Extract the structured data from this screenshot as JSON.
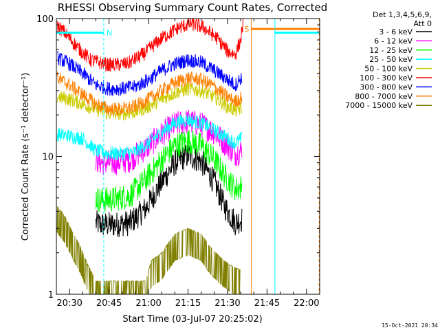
{
  "chart_data": {
    "type": "line",
    "title": "RHESSI Observing Summary Count Rates, Corrected",
    "xlabel": "Start Time (03-Jul-07 20:25:02)",
    "ylabel": "Corrected Count Rate (s⁻¹ detector⁻¹)",
    "yscale": "log",
    "ylim": [
      1,
      100
    ],
    "xlim_minutes_after_start": [
      0,
      100
    ],
    "x_ticks": [
      {
        "label": "20:30",
        "minute": 5
      },
      {
        "label": "20:45",
        "minute": 20
      },
      {
        "label": "21:00",
        "minute": 35
      },
      {
        "label": "21:15",
        "minute": 50
      },
      {
        "label": "21:30",
        "minute": 65
      },
      {
        "label": "21:45",
        "minute": 80
      },
      {
        "label": "22:00",
        "minute": 95
      }
    ],
    "y_ticks": [
      {
        "label": "1",
        "value": 1
      },
      {
        "label": "10",
        "value": 10
      },
      {
        "label": "100",
        "value": 100
      }
    ],
    "legend": {
      "header": [
        "Det 1,3,4,5,6,9,",
        "Att 0"
      ],
      "placement": "right"
    },
    "series": [
      {
        "name": "3 - 6 keV",
        "color": "#000000",
        "x": [
          15,
          17,
          22,
          28,
          34,
          40,
          45,
          50,
          55,
          60,
          64,
          68,
          70.5
        ],
        "y": [
          3.3,
          3.2,
          3.2,
          3.3,
          4.2,
          6.5,
          9.0,
          10.2,
          9.2,
          6.5,
          4.3,
          3.3,
          3.5
        ]
      },
      {
        "name": "6 - 12 keV",
        "color": "#ff00ff",
        "x": [
          15,
          17,
          22,
          28,
          34,
          40,
          45,
          50,
          55,
          60,
          64,
          68,
          70.5
        ],
        "y": [
          9.5,
          9.0,
          9.0,
          9.5,
          11.5,
          14.5,
          17.0,
          18.0,
          17.0,
          15.0,
          12.5,
          10.5,
          11.0
        ]
      },
      {
        "name": "12 - 25 keV",
        "color": "#00ff00",
        "x": [
          15,
          17,
          22,
          28,
          34,
          40,
          45,
          50,
          55,
          60,
          64,
          68,
          70.5
        ],
        "y": [
          5.0,
          4.8,
          4.9,
          5.2,
          6.8,
          9.5,
          12.0,
          13.0,
          12.0,
          9.5,
          7.2,
          5.8,
          6.0
        ]
      },
      {
        "name": "25 - 50 keV",
        "color": "#00ffff",
        "x": [
          0.3,
          5,
          10,
          15,
          20,
          25,
          30,
          35,
          40,
          45,
          50,
          55,
          60,
          65,
          68,
          70.5
        ],
        "y": [
          14.5,
          14.0,
          13.5,
          11.0,
          10.5,
          10.5,
          10.8,
          12.5,
          15.0,
          17.5,
          18.5,
          17.5,
          15.5,
          13.5,
          12.5,
          13.5
        ]
      },
      {
        "name": "50 - 100 keV",
        "color": "#cccc00",
        "x": [
          0.3,
          5,
          10,
          15,
          20,
          25,
          30,
          35,
          40,
          45,
          50,
          55,
          60,
          65,
          68,
          70.5
        ],
        "y": [
          27,
          26,
          24,
          22,
          20.5,
          20.5,
          21,
          23,
          26,
          29,
          31,
          30,
          27,
          23,
          21.5,
          22.5
        ]
      },
      {
        "name": "100 - 300 keV",
        "color": "#ff0000",
        "x": [
          0.3,
          3,
          8,
          13,
          20,
          27,
          33,
          40,
          46,
          51,
          56,
          61,
          65,
          68,
          70,
          71
        ],
        "y": [
          88,
          80,
          62,
          50,
          46,
          47,
          55,
          72,
          85,
          92,
          86,
          72,
          58,
          55,
          70,
          96
        ]
      },
      {
        "name": "300 - 800 keV",
        "color": "#0000ff",
        "x": [
          0.3,
          5,
          10,
          15,
          20,
          25,
          30,
          35,
          40,
          45,
          50,
          55,
          60,
          65,
          68,
          70.5
        ],
        "y": [
          52,
          47,
          40,
          33,
          31,
          31,
          32,
          36,
          42,
          47,
          50,
          48,
          42,
          36,
          33,
          38
        ]
      },
      {
        "name": "800 - 7000 keV",
        "color": "#ff8000",
        "x": [
          0.3,
          5,
          10,
          15,
          20,
          25,
          30,
          35,
          40,
          45,
          50,
          55,
          60,
          65,
          68,
          70.5
        ],
        "y": [
          37,
          33,
          28,
          24,
          22,
          22,
          23,
          26,
          30,
          34,
          37,
          36,
          32,
          27,
          25,
          27
        ]
      },
      {
        "name": "7000 - 15000 keV",
        "color": "#808000",
        "x": [
          0.3,
          3,
          6,
          9,
          12,
          15,
          25,
          34,
          36,
          40,
          45,
          50,
          55,
          58,
          62,
          66,
          70
        ],
        "y": [
          3.5,
          3.0,
          2.3,
          1.8,
          1.3,
          1.0,
          1.0,
          1.0,
          1.4,
          1.6,
          2.2,
          2.4,
          2.2,
          1.8,
          1.5,
          1.3,
          1.2
        ]
      }
    ],
    "flags": [
      {
        "label": "N",
        "color": "#00ffff",
        "x_start": 0,
        "x_end": 18,
        "level": 79
      },
      {
        "label": "S",
        "color": "#ff8000",
        "x_start": 74,
        "x_end": 100,
        "level": 84
      },
      {
        "label": "",
        "color": "#00ffff",
        "x_start": 83,
        "x_end": 100,
        "level": 79
      }
    ],
    "markers": [
      {
        "color": "#00ffff",
        "style": "dashed",
        "x": 18
      },
      {
        "color": "#00ffff",
        "style": "solid",
        "x": 83
      },
      {
        "color": "#ff8000",
        "style": "solid",
        "x": 74
      },
      {
        "color": "#ff8000",
        "style": "dashed",
        "x": 99.8
      }
    ]
  },
  "footer_timestamp": "15-Oct-2021 20:34"
}
